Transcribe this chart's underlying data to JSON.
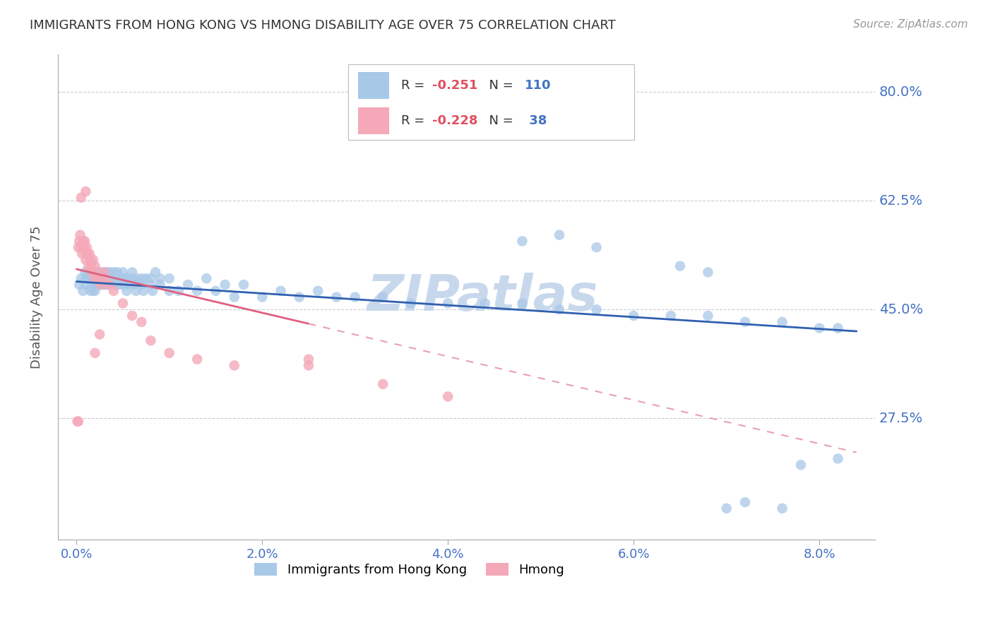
{
  "title": "IMMIGRANTS FROM HONG KONG VS HMONG DISABILITY AGE OVER 75 CORRELATION CHART",
  "source": "Source: ZipAtlas.com",
  "ylabel": "Disability Age Over 75",
  "yticks": [
    0.275,
    0.45,
    0.625,
    0.8
  ],
  "ytick_labels": [
    "27.5%",
    "45.0%",
    "62.5%",
    "80.0%"
  ],
  "xticks": [
    0.0,
    0.02,
    0.04,
    0.06,
    0.08
  ],
  "xtick_labels": [
    "0.0%",
    "2.0%",
    "4.0%",
    "6.0%",
    "8.0%"
  ],
  "xlim": [
    -0.002,
    0.086
  ],
  "ylim": [
    0.08,
    0.86
  ],
  "hk_R": -0.251,
  "hk_N": 110,
  "hmong_R": -0.228,
  "hmong_N": 38,
  "hk_color": "#A8C8E8",
  "hmong_color": "#F4A8B8",
  "hk_line_color": "#3060B0",
  "hmong_line_color": "#E06080",
  "hmong_line_dash_color": "#E8A0B0",
  "grid_color": "#CCCCCC",
  "background_color": "#FFFFFF",
  "title_color": "#333333",
  "axis_label_color": "#555555",
  "tick_label_color": "#4472C4",
  "watermark_color": "#C8D8EC",
  "legend_R_color": "#333333",
  "legend_Rval_color": "#E05060",
  "legend_N_color": "#4472C4",
  "hk_x": [
    0.0003,
    0.0005,
    0.0007,
    0.0009,
    0.001,
    0.001,
    0.0012,
    0.0013,
    0.0015,
    0.0015,
    0.0016,
    0.0017,
    0.0018,
    0.0019,
    0.002,
    0.002,
    0.002,
    0.002,
    0.0021,
    0.0022,
    0.0022,
    0.0023,
    0.0024,
    0.0024,
    0.0025,
    0.0025,
    0.0026,
    0.0027,
    0.0028,
    0.003,
    0.003,
    0.003,
    0.0031,
    0.0032,
    0.0033,
    0.0034,
    0.0035,
    0.0036,
    0.0037,
    0.0038,
    0.004,
    0.004,
    0.0041,
    0.0042,
    0.0043,
    0.0044,
    0.0045,
    0.0046,
    0.0048,
    0.005,
    0.005,
    0.0052,
    0.0054,
    0.0055,
    0.0056,
    0.006,
    0.006,
    0.0062,
    0.0064,
    0.0065,
    0.007,
    0.007,
    0.0072,
    0.0075,
    0.008,
    0.008,
    0.0082,
    0.0085,
    0.009,
    0.009,
    0.01,
    0.01,
    0.011,
    0.012,
    0.013,
    0.014,
    0.015,
    0.016,
    0.017,
    0.018,
    0.02,
    0.022,
    0.024,
    0.026,
    0.028,
    0.03,
    0.033,
    0.036,
    0.04,
    0.044,
    0.048,
    0.052,
    0.056,
    0.06,
    0.064,
    0.068,
    0.072,
    0.076,
    0.08,
    0.082,
    0.048,
    0.052,
    0.056,
    0.065,
    0.068,
    0.07,
    0.072,
    0.076,
    0.078,
    0.082
  ],
  "hk_y": [
    0.49,
    0.5,
    0.48,
    0.51,
    0.5,
    0.49,
    0.5,
    0.51,
    0.48,
    0.5,
    0.49,
    0.5,
    0.48,
    0.51,
    0.5,
    0.49,
    0.48,
    0.5,
    0.49,
    0.51,
    0.5,
    0.49,
    0.51,
    0.5,
    0.49,
    0.5,
    0.51,
    0.5,
    0.49,
    0.5,
    0.49,
    0.51,
    0.5,
    0.49,
    0.5,
    0.51,
    0.5,
    0.49,
    0.51,
    0.5,
    0.5,
    0.49,
    0.51,
    0.5,
    0.49,
    0.51,
    0.5,
    0.49,
    0.5,
    0.51,
    0.49,
    0.5,
    0.48,
    0.5,
    0.49,
    0.51,
    0.5,
    0.49,
    0.48,
    0.5,
    0.49,
    0.5,
    0.48,
    0.5,
    0.49,
    0.5,
    0.48,
    0.51,
    0.49,
    0.5,
    0.48,
    0.5,
    0.48,
    0.49,
    0.48,
    0.5,
    0.48,
    0.49,
    0.47,
    0.49,
    0.47,
    0.48,
    0.47,
    0.48,
    0.47,
    0.47,
    0.47,
    0.46,
    0.46,
    0.46,
    0.46,
    0.45,
    0.45,
    0.44,
    0.44,
    0.44,
    0.43,
    0.43,
    0.42,
    0.42,
    0.56,
    0.57,
    0.55,
    0.52,
    0.51,
    0.13,
    0.14,
    0.13,
    0.2,
    0.21
  ],
  "hmong_x": [
    0.0002,
    0.0003,
    0.0004,
    0.0005,
    0.0006,
    0.0007,
    0.0008,
    0.0009,
    0.001,
    0.001,
    0.0011,
    0.0012,
    0.0013,
    0.0014,
    0.0015,
    0.0016,
    0.0017,
    0.0018,
    0.002,
    0.002,
    0.0022,
    0.0024,
    0.0026,
    0.003,
    0.003,
    0.0035,
    0.004,
    0.005,
    0.006,
    0.007,
    0.008,
    0.01,
    0.013,
    0.017,
    0.025,
    0.025,
    0.033,
    0.04
  ],
  "hmong_y": [
    0.55,
    0.56,
    0.57,
    0.55,
    0.54,
    0.56,
    0.55,
    0.56,
    0.54,
    0.53,
    0.55,
    0.54,
    0.52,
    0.54,
    0.53,
    0.52,
    0.51,
    0.53,
    0.52,
    0.5,
    0.51,
    0.5,
    0.49,
    0.51,
    0.5,
    0.49,
    0.48,
    0.46,
    0.44,
    0.43,
    0.4,
    0.38,
    0.37,
    0.36,
    0.36,
    0.37,
    0.33,
    0.31
  ],
  "hmong_extra_x": [
    0.0001,
    0.0002,
    0.0005,
    0.001,
    0.002,
    0.0025
  ],
  "hmong_extra_y": [
    0.27,
    0.27,
    0.63,
    0.64,
    0.38,
    0.41
  ]
}
